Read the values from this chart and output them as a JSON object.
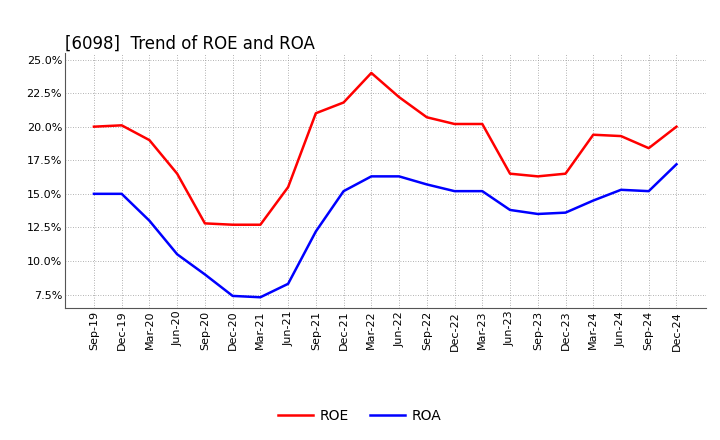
{
  "title": "[6098]  Trend of ROE and ROA",
  "ylim": [
    0.065,
    0.255
  ],
  "yticks": [
    0.075,
    0.1,
    0.125,
    0.15,
    0.175,
    0.2,
    0.225,
    0.25
  ],
  "x_labels": [
    "Sep-19",
    "Dec-19",
    "Mar-20",
    "Jun-20",
    "Sep-20",
    "Dec-20",
    "Mar-21",
    "Jun-21",
    "Sep-21",
    "Dec-21",
    "Mar-22",
    "Jun-22",
    "Sep-22",
    "Dec-22",
    "Mar-23",
    "Jun-23",
    "Sep-23",
    "Dec-23",
    "Mar-24",
    "Jun-24",
    "Sep-24",
    "Dec-24"
  ],
  "roe": [
    0.2,
    0.201,
    0.19,
    0.165,
    0.128,
    0.127,
    0.127,
    0.155,
    0.21,
    0.218,
    0.24,
    0.222,
    0.207,
    0.202,
    0.202,
    0.165,
    0.163,
    0.165,
    0.194,
    0.193,
    0.184,
    0.2
  ],
  "roa": [
    0.15,
    0.15,
    0.13,
    0.105,
    0.09,
    0.074,
    0.073,
    0.083,
    0.122,
    0.152,
    0.163,
    0.163,
    0.157,
    0.152,
    0.152,
    0.138,
    0.135,
    0.136,
    0.145,
    0.153,
    0.152,
    0.172
  ],
  "roe_color": "#FF0000",
  "roa_color": "#0000FF",
  "background_color": "#FFFFFF",
  "grid_color": "#999999",
  "line_width": 1.8,
  "title_fontsize": 12,
  "tick_fontsize": 8,
  "legend_fontsize": 10
}
